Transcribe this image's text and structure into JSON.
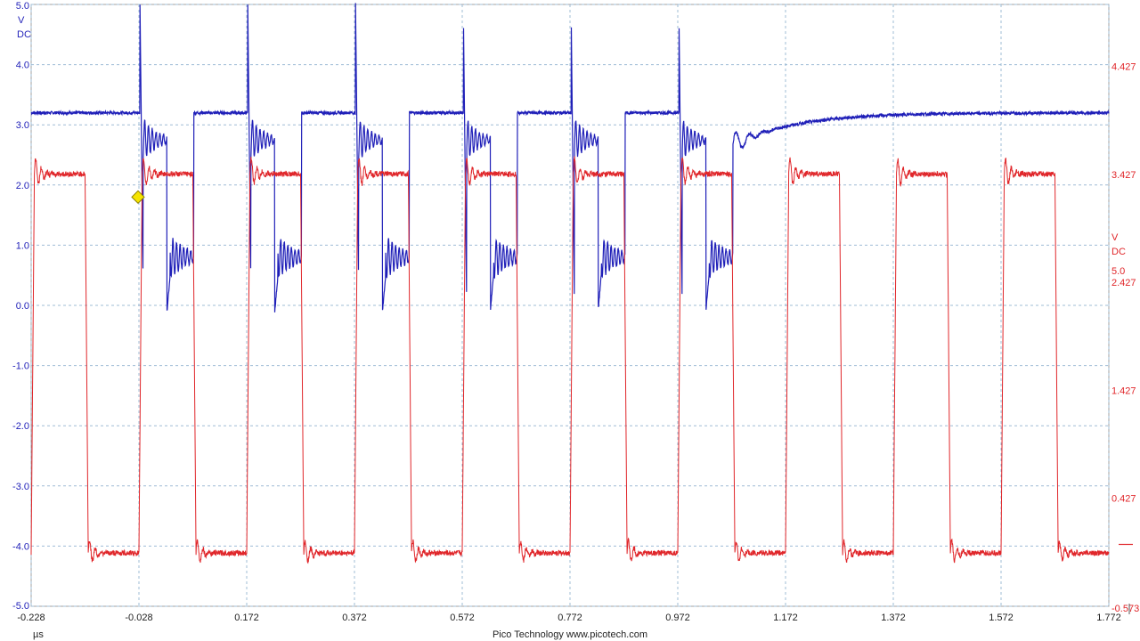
{
  "chart_data": {
    "type": "line",
    "title": "",
    "x": {
      "unit": "µs",
      "range": [
        -0.228,
        1.772
      ],
      "ticks": [
        "-0.228",
        "-0.028",
        "0.172",
        "0.372",
        "0.572",
        "0.772",
        "0.972",
        "1.172",
        "1.372",
        "1.572",
        "1.772"
      ]
    },
    "y_left": {
      "unit": "V",
      "coupling": "DC",
      "range": [
        -5.0,
        5.0
      ],
      "ticks": [
        "5.0",
        "4.0",
        "3.0",
        "2.0",
        "1.0",
        "0.0",
        "-1.0",
        "-2.0",
        "-3.0",
        "-4.0",
        "-5.0"
      ],
      "color": "#1f1fb8"
    },
    "y_right": {
      "unit": "V",
      "coupling": "DC",
      "range": [
        -0.573,
        5.0
      ],
      "ticks": [
        "5.0",
        "4.427",
        "3.427",
        "2.427",
        "1.427",
        "0.427",
        "-0.573"
      ],
      "color": "#e0262a"
    },
    "grid": true,
    "trigger": {
      "time": -0.028,
      "level": 1.8,
      "color": "#f5e400"
    },
    "series": [
      {
        "channel": "A",
        "axis": "left",
        "color": "#1f1fb8",
        "idle_level": 3.2,
        "low_level": 0.8,
        "pulse_starts": [
          -0.026,
          0.174,
          0.374,
          0.574,
          0.774,
          0.974
        ],
        "pulse_width": 0.1,
        "recovery_level": 2.75
      },
      {
        "channel": "B",
        "axis": "right",
        "color": "#e0262a",
        "high_level": 3.43,
        "low_level": -0.08,
        "period": 0.2,
        "rising_edges": [
          -0.228,
          -0.028,
          0.172,
          0.372,
          0.572,
          0.772,
          0.972,
          1.172,
          1.372,
          1.572,
          1.772
        ]
      }
    ]
  },
  "footer": {
    "unit_label": "µs",
    "brand": "Pico Technology  www.picotech.com"
  }
}
